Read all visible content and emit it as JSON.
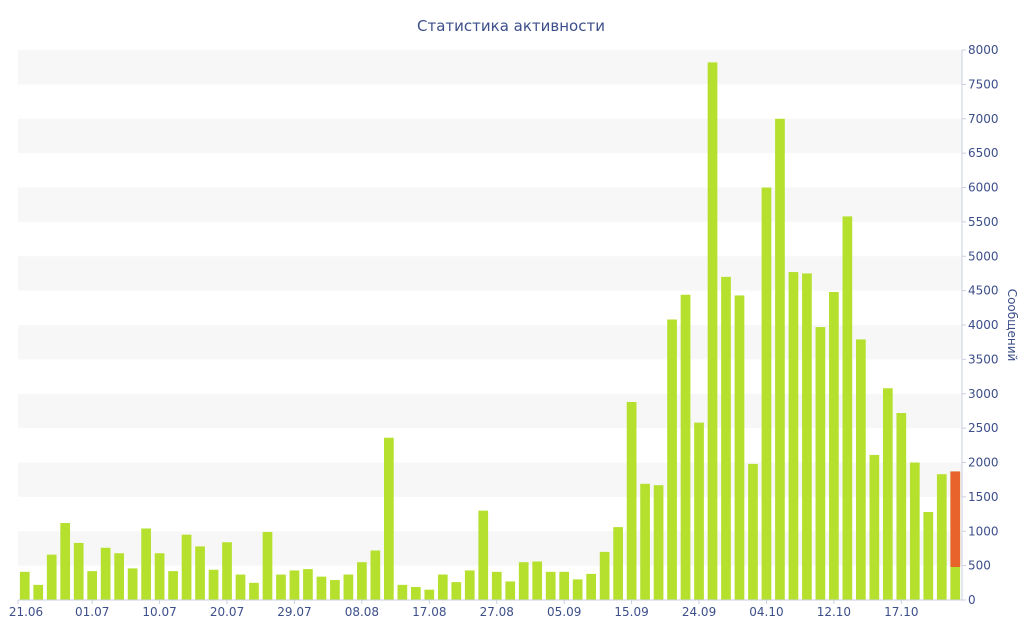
{
  "chart_data": {
    "type": "bar",
    "title": "Статистика активности",
    "ylabel": "Сообщений",
    "xlabel": "",
    "ylim": [
      0,
      8000
    ],
    "y_ticks": [
      0,
      500,
      1000,
      1500,
      2000,
      2500,
      3000,
      3500,
      4000,
      4500,
      5000,
      5500,
      6000,
      6500,
      7000,
      7500,
      8000
    ],
    "y_axis_side": "right",
    "grid": "alternating horizontal bands",
    "x_tick_labels": [
      "21.06",
      "01.07",
      "10.07",
      "20.07",
      "29.07",
      "08.08",
      "17.08",
      "27.08",
      "05.09",
      "15.09",
      "24.09",
      "04.10",
      "12.10",
      "17.10"
    ],
    "x_tick_bar_index": [
      0,
      5,
      10,
      15,
      20,
      25,
      30,
      35,
      40,
      45,
      50,
      55,
      60,
      65
    ],
    "colors": {
      "bar": "#b5e02e",
      "current": "#e8622c",
      "text": "#3d4f8a",
      "band": "#f7f7f7"
    },
    "values": [
      410,
      220,
      660,
      1120,
      830,
      420,
      760,
      680,
      460,
      1040,
      680,
      420,
      950,
      780,
      440,
      840,
      370,
      250,
      990,
      370,
      430,
      450,
      340,
      290,
      370,
      550,
      720,
      2360,
      220,
      190,
      150,
      370,
      260,
      430,
      1300,
      410,
      270,
      550,
      560,
      410,
      410,
      300,
      380,
      700,
      1060,
      2880,
      1690,
      1670,
      4080,
      4440,
      2580,
      7820,
      4700,
      4430,
      1980,
      6000,
      7000,
      4770,
      4750,
      3970,
      4480,
      5580,
      3790,
      2110,
      3080,
      2720,
      2000,
      1280,
      1830,
      1870
    ],
    "current_bar": {
      "index": 69,
      "highlight_from": 480
    }
  }
}
